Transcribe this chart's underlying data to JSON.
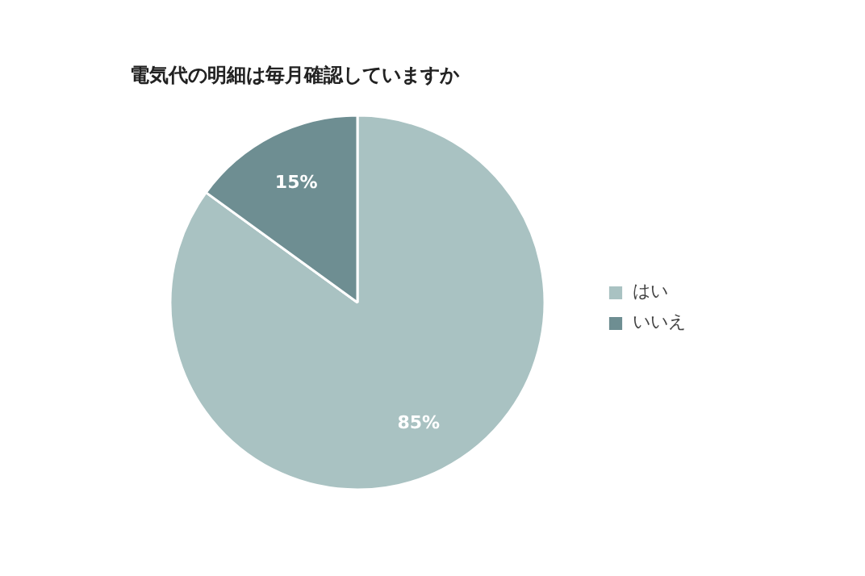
{
  "chart_data": {
    "type": "pie",
    "title": "電気代の明細は毎月確認していますか",
    "categories": [
      "はい",
      "いいえ"
    ],
    "values": [
      85,
      15
    ],
    "colors": [
      "#a9c2c2",
      "#6e8e92"
    ],
    "value_labels": [
      "85%",
      "15%"
    ],
    "legend": "right"
  }
}
